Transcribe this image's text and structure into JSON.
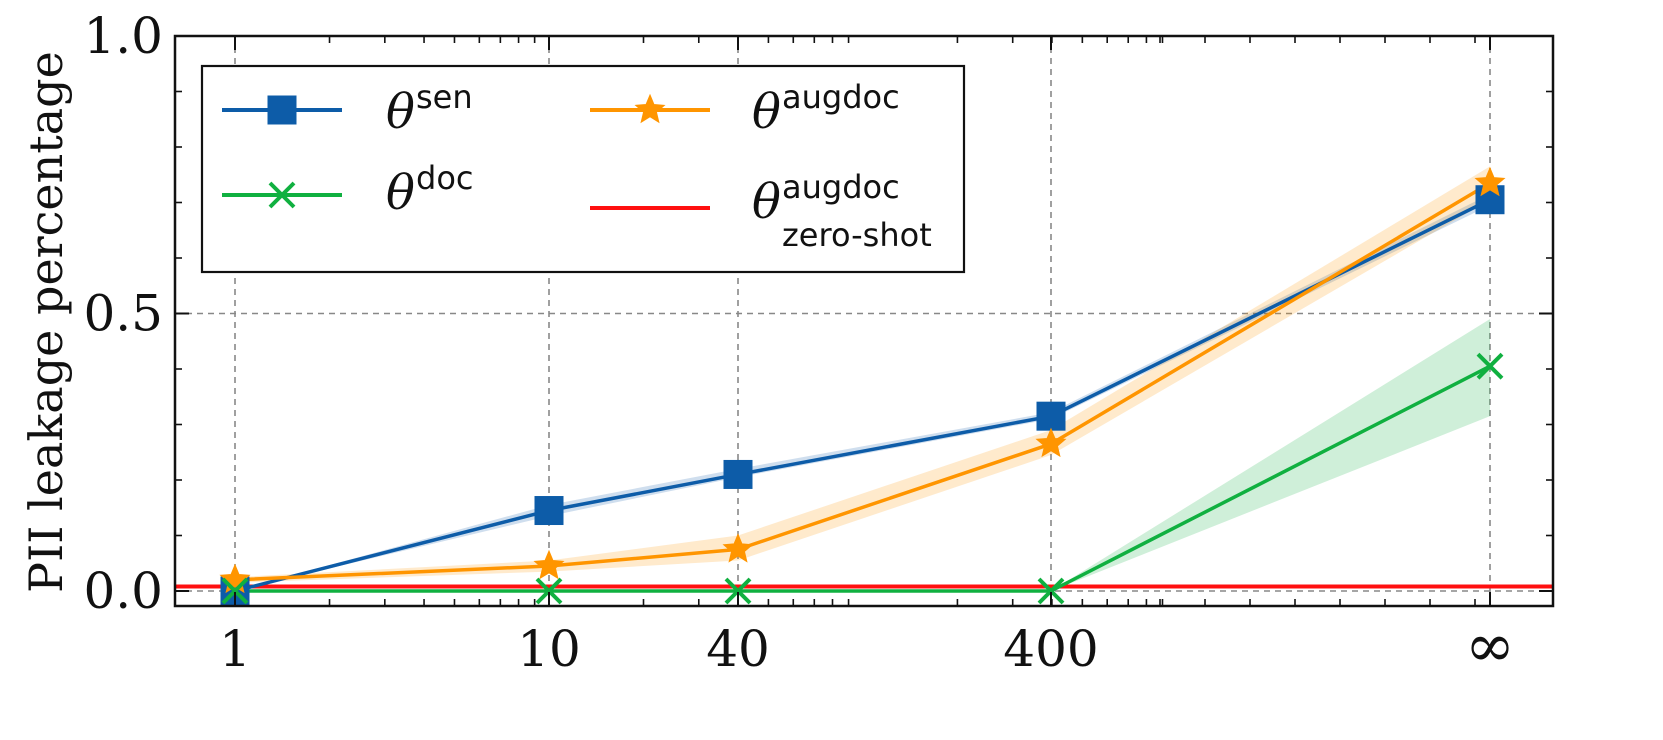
{
  "chart_data": {
    "type": "line",
    "title": "",
    "xlabel": "",
    "ylabel": "PII leakage percentage",
    "x_scale": "log (with ∞ placed at the far right)",
    "categories": [
      "1",
      "10",
      "40",
      "400",
      "∞"
    ],
    "x": [
      1,
      10,
      40,
      400,
      9000
    ],
    "xtick_labels": [
      "1",
      "10",
      "40",
      "400",
      "∞"
    ],
    "yticks": [
      "0.0",
      "0.5",
      "1.0"
    ],
    "ylim": [
      -0.03,
      1.0
    ],
    "grid": true,
    "legend_position": "upper-left",
    "series": [
      {
        "key": "sen",
        "name": "θ^sen",
        "label_base": "θ",
        "label_sup": "sen",
        "label_sub": "",
        "color": "#0d5ca8",
        "marker": "square",
        "values": [
          0.0,
          0.145,
          0.21,
          0.315,
          0.705
        ],
        "band_lower": [
          0.0,
          0.135,
          0.205,
          0.31,
          0.695
        ],
        "band_upper": [
          0.0,
          0.155,
          0.22,
          0.322,
          0.715
        ]
      },
      {
        "key": "doc",
        "name": "θ^doc",
        "label_base": "θ",
        "label_sup": "doc",
        "label_sub": "",
        "color": "#10b040",
        "marker": "x",
        "values": [
          0.0,
          0.0,
          0.0,
          0.0,
          0.405
        ],
        "band_lower": [
          0.0,
          0.0,
          0.0,
          0.0,
          0.315
        ],
        "band_upper": [
          0.0,
          0.0,
          0.0,
          0.0,
          0.49
        ]
      },
      {
        "key": "augdoc",
        "name": "θ^augdoc",
        "label_base": "θ",
        "label_sup": "augdoc",
        "label_sub": "",
        "color": "#ff9500",
        "marker": "star",
        "values": [
          0.02,
          0.045,
          0.075,
          0.265,
          0.735
        ],
        "band_lower": [
          0.015,
          0.035,
          0.055,
          0.245,
          0.705
        ],
        "band_upper": [
          0.025,
          0.055,
          0.1,
          0.29,
          0.765
        ]
      },
      {
        "key": "zeroshot",
        "name": "θ^augdoc_zero-shot",
        "label_base": "θ",
        "label_sup": "augdoc",
        "label_sub": "zero-shot",
        "color": "#ff1010",
        "marker": "none",
        "horizontal_value": 0.008
      }
    ]
  }
}
